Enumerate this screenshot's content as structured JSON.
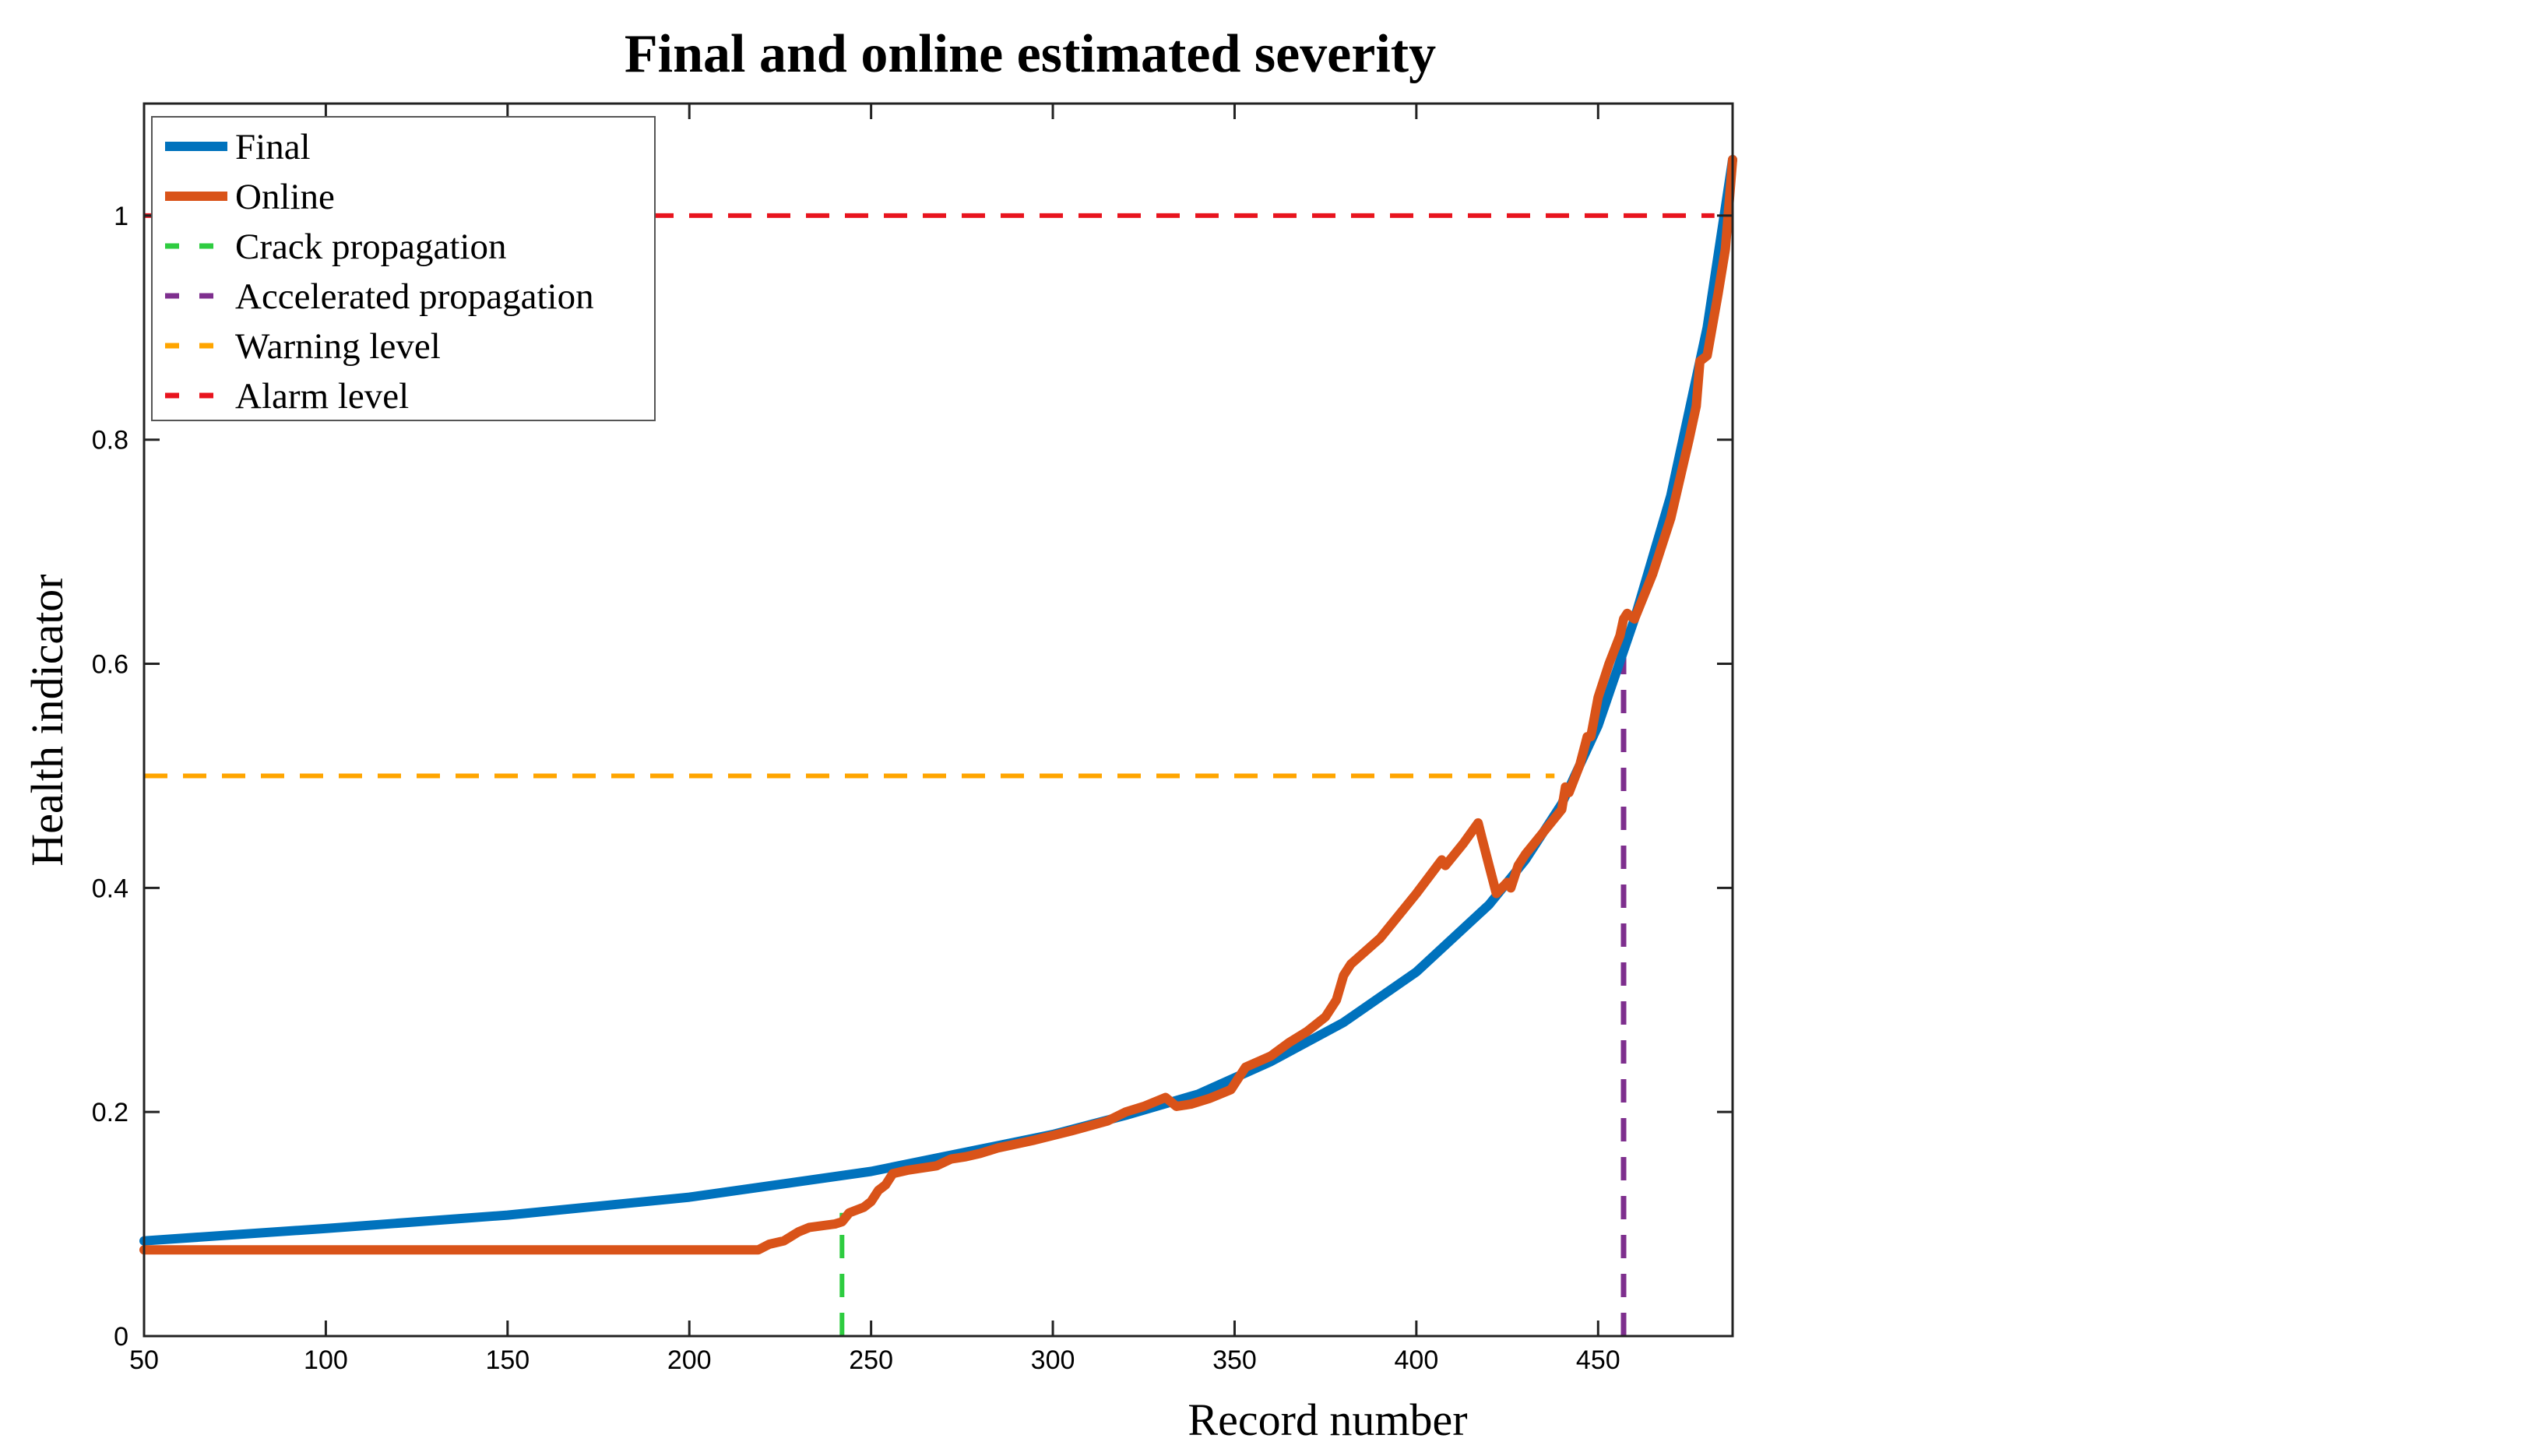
{
  "chart_data": {
    "type": "line",
    "title": "Final and online estimated severity",
    "xlabel": "Record number",
    "ylabel": "Health indicator",
    "xlim": [
      50,
      487
    ],
    "ylim": [
      0,
      1.1
    ],
    "xticks": [
      "50",
      "100",
      "150",
      "200",
      "250",
      "300",
      "350",
      "400",
      "450"
    ],
    "yticks": [
      "0",
      "0.2",
      "0.4",
      "0.6",
      "0.8",
      "1"
    ],
    "legend_position": "top-left",
    "colors": {
      "final": "#0072BD",
      "online": "#D95319",
      "crack": "#2ECC40",
      "accelerated": "#7E2F8E",
      "warning": "#FFA500",
      "alarm": "#E8141E"
    },
    "series": [
      {
        "name": "Final",
        "style": "solid",
        "x": [
          50,
          100,
          150,
          200,
          250,
          300,
          320,
          340,
          360,
          380,
          400,
          420,
          430,
          440,
          450,
          460,
          470,
          480,
          487
        ],
        "y": [
          0.085,
          0.096,
          0.108,
          0.124,
          0.147,
          0.18,
          0.197,
          0.216,
          0.245,
          0.28,
          0.325,
          0.385,
          0.425,
          0.475,
          0.545,
          0.64,
          0.75,
          0.9,
          1.05
        ]
      },
      {
        "name": "Online",
        "style": "solid",
        "x": [
          50,
          219,
          222,
          226,
          230,
          233,
          240,
          242,
          244,
          248,
          250,
          252,
          254,
          256,
          260,
          268,
          272,
          276,
          280,
          285,
          295,
          305,
          315,
          320,
          325,
          331,
          334,
          338,
          343,
          349,
          353,
          360,
          365,
          370,
          375,
          378,
          380,
          382,
          390,
          400,
          407,
          408,
          413,
          417,
          418,
          420,
          422,
          425,
          426,
          428,
          430,
          435,
          440,
          441,
          442,
          445,
          447,
          448,
          450,
          453,
          456,
          457,
          458,
          460,
          465,
          470,
          475,
          477,
          478,
          480,
          483,
          485,
          487
        ],
        "y": [
          0.077,
          0.077,
          0.082,
          0.085,
          0.093,
          0.097,
          0.1,
          0.102,
          0.11,
          0.115,
          0.12,
          0.13,
          0.135,
          0.145,
          0.148,
          0.152,
          0.158,
          0.16,
          0.163,
          0.168,
          0.175,
          0.183,
          0.192,
          0.2,
          0.205,
          0.213,
          0.205,
          0.207,
          0.212,
          0.22,
          0.24,
          0.25,
          0.262,
          0.272,
          0.285,
          0.3,
          0.322,
          0.332,
          0.355,
          0.395,
          0.425,
          0.42,
          0.44,
          0.458,
          0.445,
          0.42,
          0.395,
          0.405,
          0.4,
          0.42,
          0.43,
          0.45,
          0.47,
          0.49,
          0.485,
          0.51,
          0.535,
          0.535,
          0.57,
          0.6,
          0.625,
          0.64,
          0.645,
          0.64,
          0.68,
          0.73,
          0.8,
          0.83,
          0.87,
          0.875,
          0.93,
          0.97,
          1.05
        ]
      },
      {
        "name": "Crack propagation",
        "style": "dashed",
        "x": [
          242,
          242
        ],
        "y": [
          0,
          0.11
        ]
      },
      {
        "name": "Accelerated propagation",
        "style": "dashed",
        "x": [
          457,
          457
        ],
        "y": [
          0,
          0.62
        ]
      },
      {
        "name": "Warning level",
        "style": "dashed",
        "x": [
          50,
          438
        ],
        "y": [
          0.5,
          0.5
        ]
      },
      {
        "name": "Alarm level",
        "style": "dashed",
        "x": [
          50,
          482
        ],
        "y": [
          1,
          1
        ]
      }
    ]
  }
}
